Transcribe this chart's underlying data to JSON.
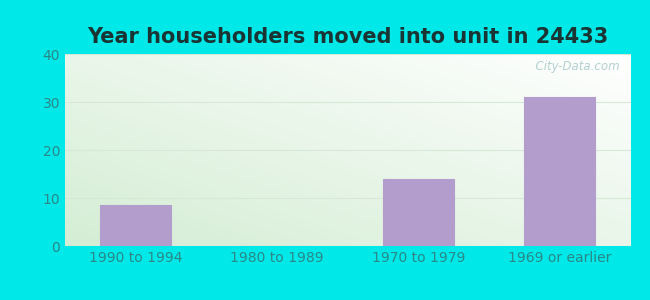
{
  "title": "Year householders moved into unit in 24433",
  "categories": [
    "1990 to 1994",
    "1980 to 1989",
    "1970 to 1979",
    "1969 or earlier"
  ],
  "values": [
    8.5,
    0,
    14,
    31
  ],
  "bar_color": "#b39dcc",
  "bar_edge_color": "#b39dcc",
  "ylim": [
    0,
    40
  ],
  "yticks": [
    0,
    10,
    20,
    30,
    40
  ],
  "background_color": "#00e8e8",
  "plot_bg_topleft": "#d4edd4",
  "plot_bg_bottomright": "#ffffff",
  "title_fontsize": 15,
  "tick_fontsize": 10,
  "tick_color": "#2a8888",
  "title_color": "#1a3333",
  "watermark_text": "  City-Data.com",
  "watermark_color": "#aacccc",
  "grid_color": "#d8e8d8"
}
